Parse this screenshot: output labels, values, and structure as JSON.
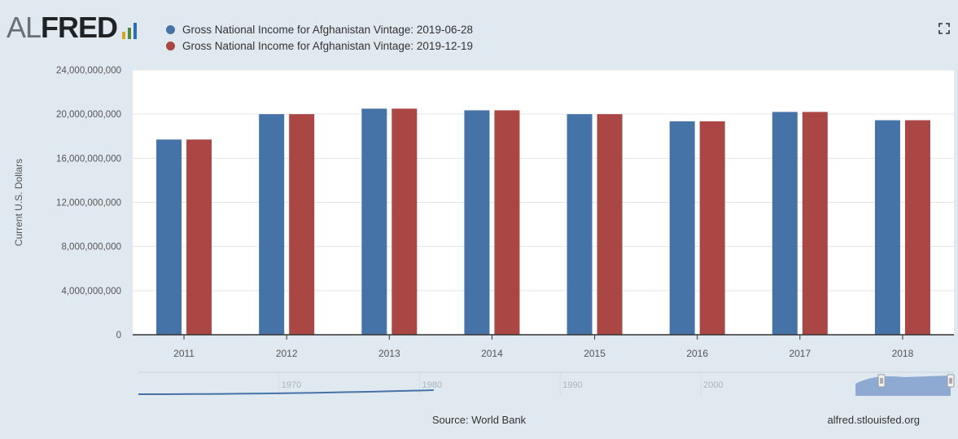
{
  "logo": {
    "text_al": "AL",
    "text_fred": "FRED",
    "bar_colors": [
      "#d4a52a",
      "#4f8b3a",
      "#2f6db2"
    ]
  },
  "legend": [
    {
      "label": "Gross National Income for Afghanistan Vintage: 2019-06-28",
      "color": "#4572a7"
    },
    {
      "label": "Gross National Income for Afghanistan Vintage: 2019-12-19",
      "color": "#aa4643"
    }
  ],
  "fullscreen_icon": "fullscreen-icon",
  "source": "Source: World Bank",
  "site": "alfred.stlouisfed.org",
  "chart_data": {
    "type": "bar",
    "categories": [
      "2011",
      "2012",
      "2013",
      "2014",
      "2015",
      "2016",
      "2017",
      "2018"
    ],
    "series": [
      {
        "name": "Gross National Income for Afghanistan Vintage: 2019-06-28",
        "color": "#4572a7",
        "values": [
          17700000000,
          20000000000,
          20500000000,
          20350000000,
          20000000000,
          19350000000,
          20200000000,
          19450000000
        ]
      },
      {
        "name": "Gross National Income for Afghanistan Vintage: 2019-12-19",
        "color": "#aa4643",
        "values": [
          17700000000,
          20000000000,
          20500000000,
          20350000000,
          20000000000,
          19350000000,
          20200000000,
          19450000000
        ]
      }
    ],
    "title": "",
    "xlabel": "",
    "ylabel": "Current U.S. Dollars",
    "ylim": [
      0,
      24000000000
    ],
    "yticks": [
      0,
      4000000000,
      8000000000,
      12000000000,
      16000000000,
      20000000000,
      24000000000
    ],
    "ytick_labels": [
      "0",
      "4,000,000,000",
      "8,000,000,000",
      "12,000,000,000",
      "16,000,000,000",
      "20,000,000,000",
      "24,000,000,000"
    ],
    "grid": true,
    "legend_position": "top-left",
    "navigator": {
      "tick_labels": [
        "1970",
        "1980",
        "1990",
        "2000"
      ],
      "tick_years": [
        1970,
        1980,
        1990,
        2000
      ],
      "year_range": [
        1960,
        2018
      ],
      "selected_range": [
        2011,
        2018
      ],
      "line_color": "#4572a7",
      "selection_color": "#7f9fcc"
    }
  }
}
